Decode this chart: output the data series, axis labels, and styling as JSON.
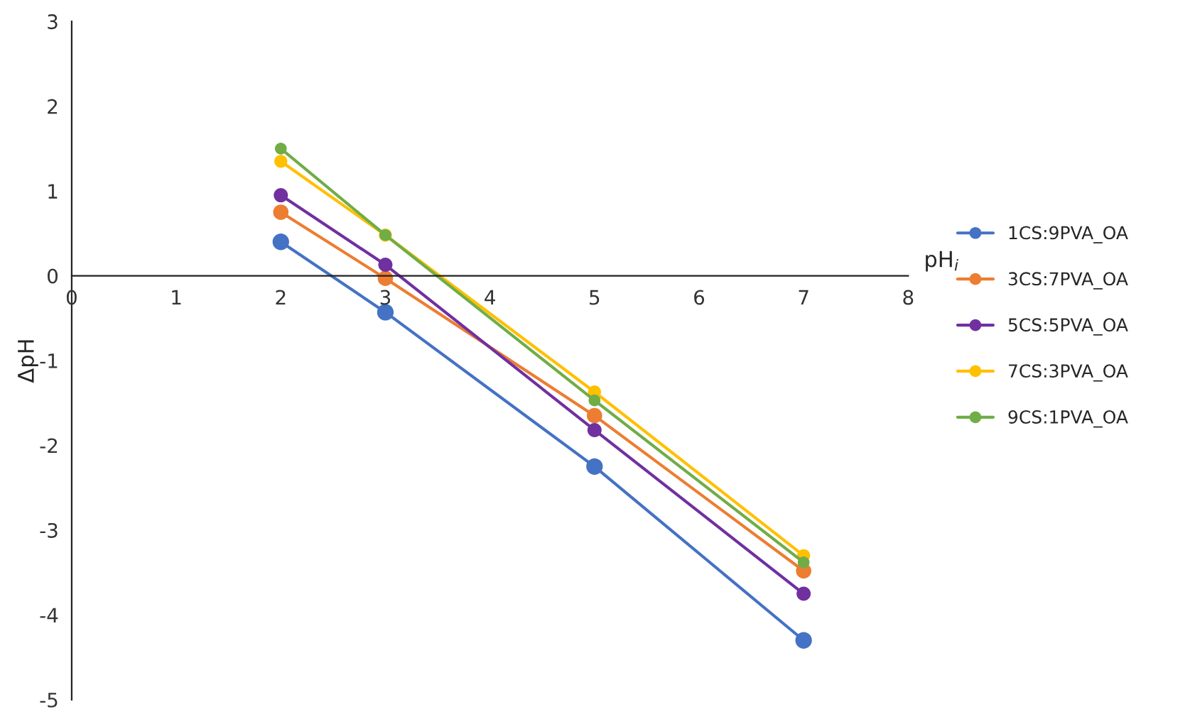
{
  "chart_data": {
    "type": "line",
    "xlabel": "pH$_{i}$",
    "ylabel": "ΔpH",
    "x": [
      2,
      3,
      5,
      7
    ],
    "series": [
      {
        "name": "1CS:9PVA_OA",
        "color": "#4472c4",
        "values": [
          0.4,
          -0.43,
          -2.25,
          -4.3
        ]
      },
      {
        "name": "3CS:7PVA_OA",
        "color": "#ed7d31",
        "values": [
          0.75,
          -0.03,
          -1.65,
          -3.48
        ]
      },
      {
        "name": "5CS:5PVA_OA",
        "color": "#7030a0",
        "values": [
          0.95,
          0.13,
          -1.82,
          -3.75
        ]
      },
      {
        "name": "7CS:3PVA_OA",
        "color": "#ffc000",
        "values": [
          1.35,
          0.48,
          -1.37,
          -3.3
        ]
      },
      {
        "name": "9CS:1PVA_OA",
        "color": "#70ad47",
        "values": [
          1.5,
          0.48,
          -1.47,
          -3.38
        ]
      }
    ],
    "xlim": [
      0,
      8
    ],
    "xticks": [
      0,
      1,
      2,
      3,
      4,
      5,
      6,
      7,
      8
    ],
    "ylim": [
      -5,
      3
    ],
    "yticks": [
      -5,
      -4,
      -3,
      -2,
      -1,
      0,
      1,
      2,
      3
    ],
    "grid": false,
    "legend": "right",
    "marker": "circle",
    "line_style": "solid"
  }
}
